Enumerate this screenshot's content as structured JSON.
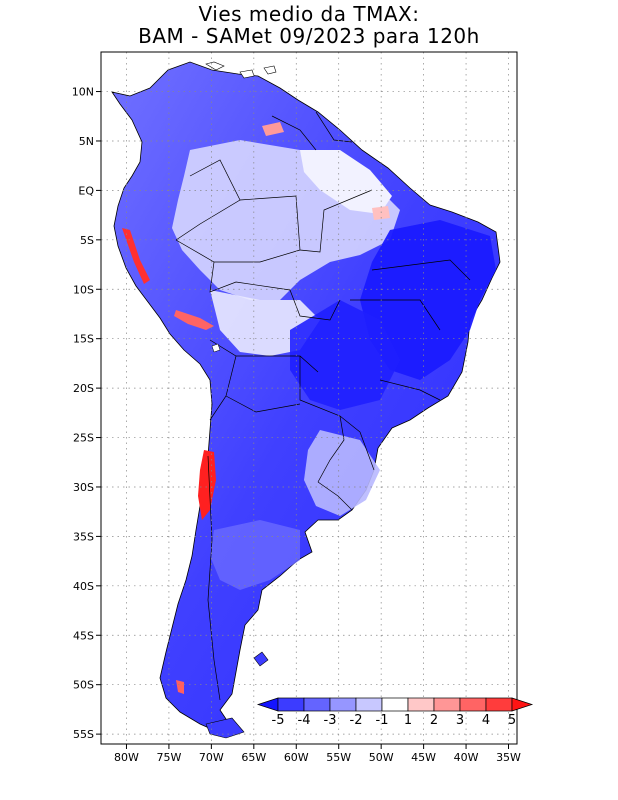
{
  "title": {
    "line1": "Vies medio da TMAX:",
    "line2": "BAM - SAMet 09/2023  para 120h"
  },
  "map": {
    "region": "South America",
    "variable": "TMAX bias",
    "lat_range": [
      -56,
      14
    ],
    "lon_range": [
      -83,
      -34
    ],
    "lat_ticks": [
      "10N",
      "5N",
      "EQ",
      "5S",
      "10S",
      "15S",
      "20S",
      "25S",
      "30S",
      "35S",
      "40S",
      "45S",
      "50S",
      "55S"
    ],
    "lon_ticks": [
      "80W",
      "75W",
      "70W",
      "65W",
      "60W",
      "55W",
      "50W",
      "45W",
      "40W",
      "35W"
    ]
  },
  "colorbar": {
    "labels": [
      "-5",
      "-4",
      "-3",
      "-2",
      "-1",
      "1",
      "2",
      "3",
      "4",
      "5"
    ],
    "colors": [
      "#1414ff",
      "#3c3cff",
      "#6464ff",
      "#9696ff",
      "#c8c8ff",
      "#ffffff",
      "#ffc8c8",
      "#ff9696",
      "#ff6464",
      "#ff3c3c",
      "#ff1414"
    ]
  }
}
